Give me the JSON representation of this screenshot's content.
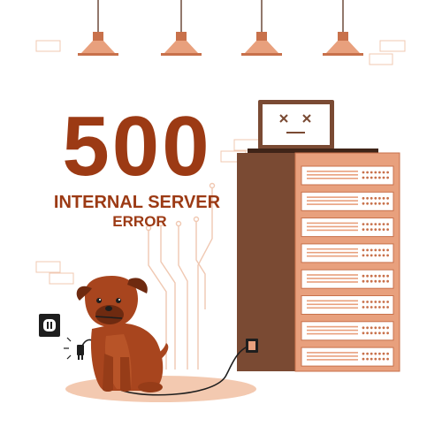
{
  "error": {
    "code": "500",
    "title": "INTERNAL SERVER",
    "subtitle": "ERROR"
  },
  "colors": {
    "brand": "#9c3a14",
    "lamp": "#e8a07d",
    "lamp_dark": "#c8714b",
    "rack": "#7a4a33",
    "rack_light": "#e8a07d",
    "wire_outline": "#f0d2c0",
    "dog": "#a8451e",
    "dog_dark": "#6e2a10",
    "shadow": "#f3c9b0"
  },
  "icons": {
    "screen_face": "x-eyes-icon",
    "outlet": "power-outlet-icon",
    "plug": "power-plug-icon"
  }
}
